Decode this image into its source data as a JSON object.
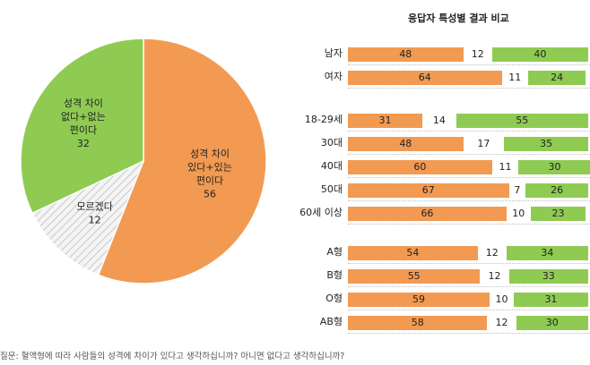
{
  "chart_data": [
    {
      "type": "pie",
      "slices": [
        {
          "label_lines": [
            "성격 차이",
            "있다+있는",
            "편이다"
          ],
          "value": 56,
          "color": "#f29a52"
        },
        {
          "label_lines": [
            "모르겠다"
          ],
          "value": 12,
          "color": "#e8e8e8"
        },
        {
          "label_lines": [
            "성격 차이",
            "없다+없는",
            "편이다"
          ],
          "value": 32,
          "color": "#8fcb52"
        }
      ]
    },
    {
      "type": "bar",
      "stacked": true,
      "orientation": "horizontal",
      "title": "응답자 특성별 결과 비교",
      "categories": [
        "남자",
        "여자",
        "18-29세",
        "30대",
        "40대",
        "50대",
        "60세 이상",
        "A형",
        "B형",
        "O형",
        "AB형"
      ],
      "series": [
        {
          "values": [
            48,
            64,
            31,
            48,
            60,
            67,
            66,
            54,
            55,
            59,
            58
          ],
          "color": "#f29a52"
        },
        {
          "values": [
            12,
            11,
            14,
            17,
            11,
            7,
            10,
            12,
            12,
            10,
            12
          ],
          "color": "#ffffff"
        },
        {
          "values": [
            40,
            24,
            55,
            35,
            30,
            26,
            23,
            34,
            33,
            31,
            30
          ],
          "color": "#8fcb52"
        }
      ]
    }
  ],
  "question": "질문: 혈액형에 따라 사람들의 성격에 차이가 있다고 생각하십니까? 아니면 없다고 생각하십니까?"
}
